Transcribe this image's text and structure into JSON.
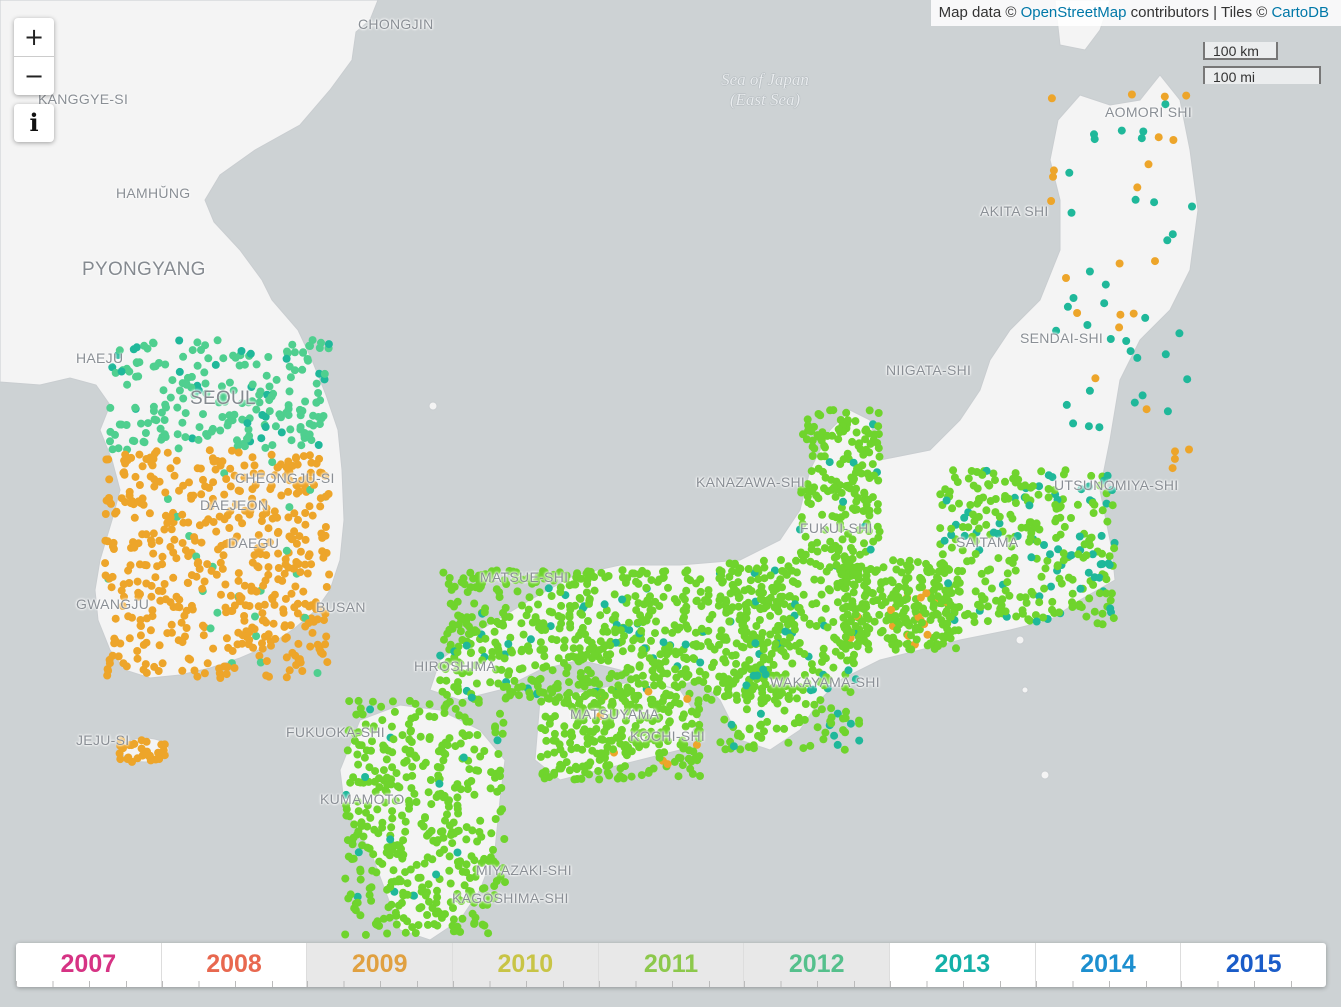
{
  "attribution": {
    "prefix": "Map data ©",
    "osm": "OpenStreetMap",
    "contributors": " contributors | Tiles © ",
    "carto": "CartoDB"
  },
  "zoom": {
    "in": "+",
    "out": "−"
  },
  "info": {
    "label": "i"
  },
  "scale": {
    "metric": "100 km",
    "imperial": "100 mi"
  },
  "sea": {
    "line1": "Sea of Japan",
    "line2": "(East Sea)"
  },
  "places": [
    {
      "id": "chongjin",
      "name": "CHONGJIN"
    },
    {
      "id": "kanggye",
      "name": "KANGGYE-SI"
    },
    {
      "id": "hamhung",
      "name": "HAMHŬNG"
    },
    {
      "id": "pyongyang",
      "name": "PYONGYANG"
    },
    {
      "id": "haeju",
      "name": "HAEJU"
    },
    {
      "id": "seoul",
      "name": "SEOUL"
    },
    {
      "id": "cheongju",
      "name": "CHEONGJU-SI"
    },
    {
      "id": "daejeon",
      "name": "DAEJEON"
    },
    {
      "id": "daegu",
      "name": "DAEGU"
    },
    {
      "id": "gwangju",
      "name": "GWANGJU"
    },
    {
      "id": "busan",
      "name": "BUSAN"
    },
    {
      "id": "jeju",
      "name": "JEJU-SI"
    },
    {
      "id": "aomori",
      "name": "AOMORI SHI"
    },
    {
      "id": "akita",
      "name": "AKITA SHI"
    },
    {
      "id": "sendai",
      "name": "SENDAI-SHI"
    },
    {
      "id": "niigata",
      "name": "NIIGATA-SHI"
    },
    {
      "id": "utsunomiya",
      "name": "UTSUNOMIYA-SHI"
    },
    {
      "id": "kanazawa",
      "name": "KANAZAWA-SHI"
    },
    {
      "id": "fukui",
      "name": "FUKUI-SHI"
    },
    {
      "id": "saitama",
      "name": "SAITAMA"
    },
    {
      "id": "matsue",
      "name": "MATSUE-SHI"
    },
    {
      "id": "hiroshima",
      "name": "HIROSHIMA"
    },
    {
      "id": "wakayama",
      "name": "WAKAYAMA-SHI"
    },
    {
      "id": "matsuyama",
      "name": "MATSUYAMA"
    },
    {
      "id": "kochi",
      "name": "KOCHI-SHI"
    },
    {
      "id": "fukuoka",
      "name": "FUKUOKA-SHI"
    },
    {
      "id": "kumamoto",
      "name": "KUMAMOTO"
    },
    {
      "id": "miyazaki",
      "name": "MIYAZAKI-SHI"
    },
    {
      "id": "kagoshima",
      "name": "KAGOSHIMA-SHI"
    }
  ],
  "timeline": {
    "selected": [
      "2009",
      "2010",
      "2011",
      "2012"
    ],
    "years": [
      {
        "label": "2007",
        "color": "#d63384"
      },
      {
        "label": "2008",
        "color": "#e8684f"
      },
      {
        "label": "2009",
        "color": "#e0a040"
      },
      {
        "label": "2010",
        "color": "#c8c446"
      },
      {
        "label": "2011",
        "color": "#8cc84b"
      },
      {
        "label": "2012",
        "color": "#55c08c"
      },
      {
        "label": "2013",
        "color": "#14b0a8"
      },
      {
        "label": "2014",
        "color": "#1d8fcf"
      },
      {
        "label": "2015",
        "color": "#1a5cc8"
      }
    ]
  },
  "colors": {
    "water": "#cdd2d4",
    "land": "#f4f4f4",
    "korea_north": "#4fcf8f",
    "korea_south": "#eda52a",
    "japan": "#6fd42d",
    "japan_alt": "#1fb89a"
  }
}
